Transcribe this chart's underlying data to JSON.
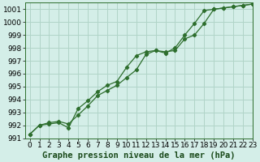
{
  "title": "Graphe pression niveau de la mer (hPa)",
  "bg_color": "#d4eee8",
  "grid_color": "#b0d4c8",
  "line_color": "#2d6e2d",
  "xlim": [
    -0.5,
    23
  ],
  "ylim": [
    991,
    1001.5
  ],
  "yticks": [
    991,
    992,
    993,
    994,
    995,
    996,
    997,
    998,
    999,
    1000,
    1001
  ],
  "xticks": [
    0,
    1,
    2,
    3,
    4,
    5,
    6,
    7,
    8,
    9,
    10,
    11,
    12,
    13,
    14,
    15,
    16,
    17,
    18,
    19,
    20,
    21,
    22,
    23
  ],
  "line1_x": [
    0,
    1,
    2,
    3,
    4,
    5,
    6,
    7,
    8,
    9,
    10,
    11,
    12,
    13,
    14,
    15,
    16,
    17,
    18,
    19,
    20,
    21,
    22,
    23
  ],
  "line1_y": [
    991.3,
    992.0,
    992.1,
    992.2,
    991.8,
    993.3,
    993.9,
    994.6,
    995.1,
    995.4,
    996.5,
    997.4,
    997.7,
    997.8,
    997.6,
    998.0,
    999.0,
    999.9,
    1000.9,
    1001.0,
    1001.1,
    1001.2,
    1001.3,
    1001.4
  ],
  "line2_x": [
    0,
    1,
    2,
    3,
    4,
    5,
    6,
    7,
    8,
    9,
    10,
    11,
    12,
    13,
    14,
    15,
    16,
    17,
    18,
    19,
    20,
    21,
    22,
    23
  ],
  "line2_y": [
    991.3,
    992.0,
    992.2,
    992.3,
    992.1,
    992.8,
    993.5,
    994.3,
    994.7,
    995.1,
    995.7,
    996.3,
    997.5,
    997.8,
    997.7,
    997.8,
    998.7,
    999.0,
    999.9,
    1001.0,
    1001.1,
    1001.2,
    1001.3,
    1001.4
  ],
  "tick_fontsize": 6.5,
  "title_fontsize": 7.5,
  "marker": "D",
  "marker_size": 2.2,
  "linewidth": 0.9
}
